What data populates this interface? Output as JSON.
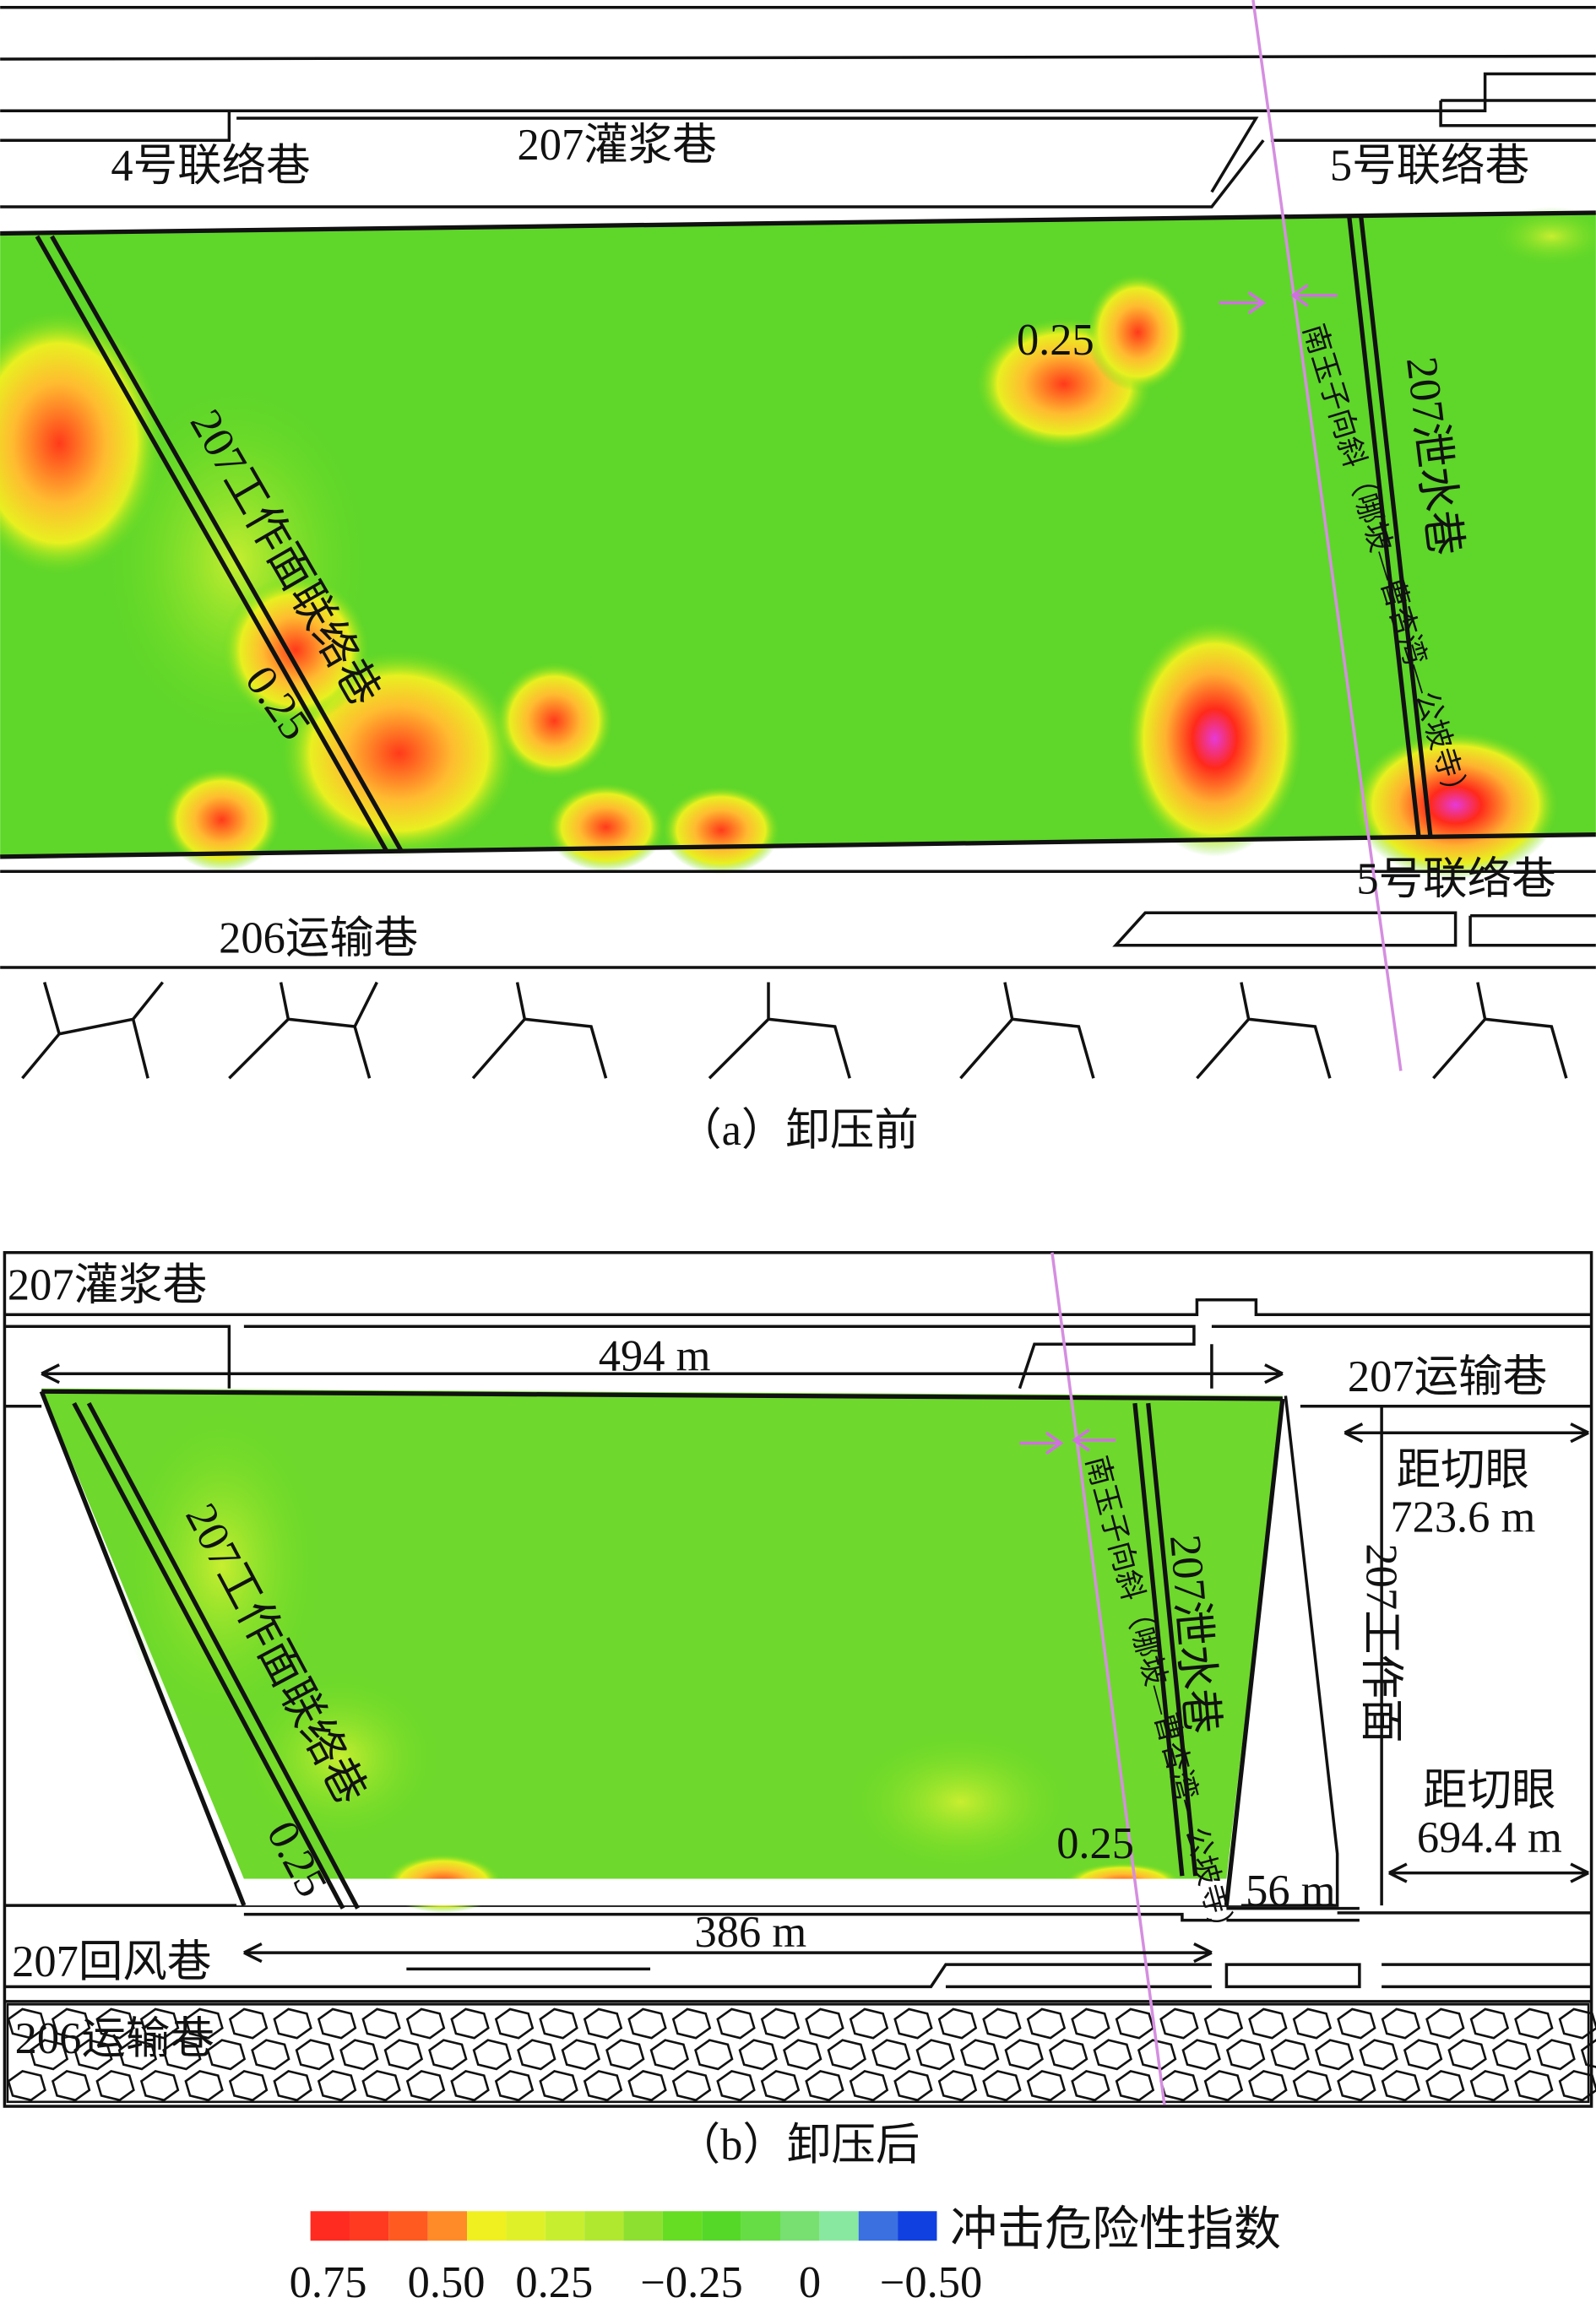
{
  "panel_a": {
    "labels": {
      "link4": "4号联络巷",
      "grout": "207灌浆巷",
      "link5_top": "5号联络巷",
      "face_link": "207工作面联络巷",
      "contour_top": "0.25",
      "contour_left": "0.25",
      "syncline": "南玉子向斜（哪坡—曹杏湾—公坡寺）",
      "drain": "207泄水巷",
      "link5_bottom": "5号联络巷",
      "transport206": "206运输巷"
    },
    "caption": "（a）卸压前"
  },
  "panel_b": {
    "labels": {
      "grout": "207灌浆巷",
      "width_top": "494 m",
      "transport207": "207运输巷",
      "dist1_title": "距切眼",
      "dist1": "723.6 m",
      "face": "207工作面",
      "dist2_title": "距切眼",
      "dist2": "694.4 m",
      "face_link": "207工作面联络巷",
      "contour_left": "0.25",
      "contour_right": "0.25",
      "syncline": "南玉子向斜（哪坡—曹杏湾—公坡寺）",
      "drain": "207泄水巷",
      "gap": "56 m",
      "width_bottom": "386 m",
      "return207": "207回风巷",
      "transport206": "206运输巷"
    },
    "caption": "（b）卸压后"
  },
  "legend": {
    "title": "冲击危险性指数",
    "labels": [
      "0.75",
      "0.50",
      "0.25",
      "−0.25",
      "0",
      "−0.50"
    ]
  }
}
